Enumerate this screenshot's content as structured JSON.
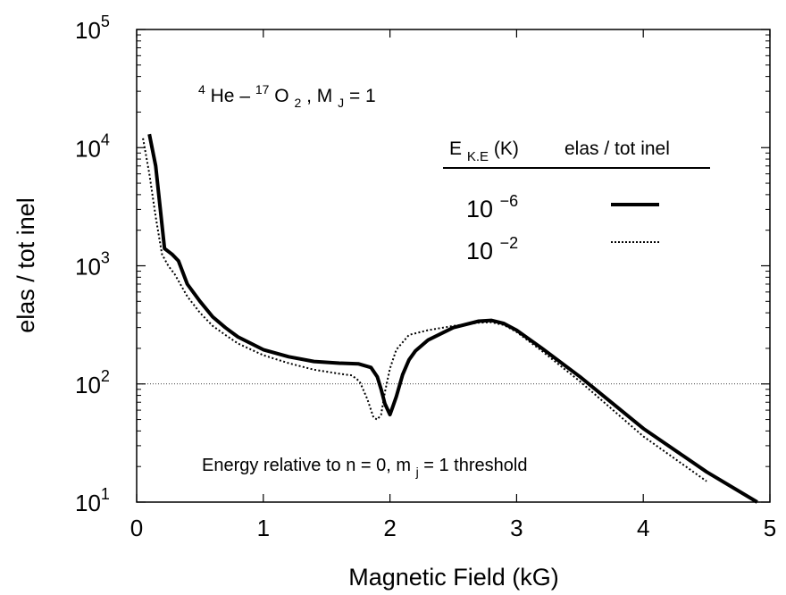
{
  "chart_data": {
    "type": "line",
    "xlabel": "Magnetic Field (kG)",
    "ylabel": "elas / tot inel",
    "x_scale": "linear",
    "y_scale": "log",
    "xlim": [
      0,
      5
    ],
    "ylim": [
      10,
      100000
    ],
    "x_ticks": [
      {
        "value": 0,
        "label": "0"
      },
      {
        "value": 1,
        "label": "1"
      },
      {
        "value": 2,
        "label": "2"
      },
      {
        "value": 3,
        "label": "3"
      },
      {
        "value": 4,
        "label": "4"
      },
      {
        "value": 5,
        "label": "5"
      }
    ],
    "y_ticks": [
      {
        "value": 10,
        "base": "10",
        "exp": "1"
      },
      {
        "value": 100,
        "base": "10",
        "exp": "2"
      },
      {
        "value": 1000,
        "base": "10",
        "exp": "3"
      },
      {
        "value": 10000,
        "base": "10",
        "exp": "4"
      },
      {
        "value": 100000,
        "base": "10",
        "exp": "5"
      }
    ],
    "reference_line": {
      "y": 100,
      "style": "dotted"
    },
    "annotations": {
      "system": {
        "sup1": "4",
        "he": "He –",
        "sup2": "17",
        "o": "O",
        "sub": "2",
        "mj": ", M",
        "mj_sub": "J",
        "eq": " = 1"
      },
      "energy_note": {
        "pre": "Energy relative to n = 0, m",
        "sub": "j",
        "post": " = 1 threshold"
      }
    },
    "legend": {
      "placement": "top-right",
      "header_energy": "E",
      "header_energy_sub": "K.E",
      "header_energy_post": "(K)",
      "header_ratio": "elas / tot inel",
      "entries": [
        {
          "base": "10",
          "exp": "−6",
          "style": "solid"
        },
        {
          "base": "10",
          "exp": "−2",
          "style": "dotted"
        }
      ]
    },
    "series": [
      {
        "style": "solid",
        "x": [
          0.1,
          0.15,
          0.22,
          0.28,
          0.33,
          0.4,
          0.5,
          0.6,
          0.7,
          0.8,
          1.0,
          1.2,
          1.4,
          1.6,
          1.75,
          1.85,
          1.9,
          1.93,
          1.96,
          2.0,
          2.02,
          2.05,
          2.1,
          2.15,
          2.2,
          2.3,
          2.5,
          2.7,
          2.8,
          2.9,
          3.0,
          3.2,
          3.5,
          4.0,
          4.5,
          4.9
        ],
        "y": [
          13000,
          7000,
          1400,
          1250,
          1100,
          700,
          500,
          370,
          300,
          250,
          195,
          170,
          155,
          150,
          148,
          138,
          115,
          90,
          68,
          55,
          63,
          78,
          120,
          160,
          190,
          235,
          300,
          340,
          345,
          325,
          285,
          200,
          115,
          42,
          18,
          10
        ]
      },
      {
        "style": "dotted",
        "x": [
          0.05,
          0.1,
          0.15,
          0.2,
          0.25,
          0.3,
          0.4,
          0.5,
          0.6,
          0.7,
          0.8,
          1.0,
          1.2,
          1.4,
          1.6,
          1.7,
          1.76,
          1.82,
          1.87,
          1.9,
          1.93,
          1.96,
          2.0,
          2.05,
          2.15,
          2.3,
          2.5,
          2.7,
          2.8,
          2.9,
          3.0,
          3.2,
          3.5,
          4.0,
          4.5
        ],
        "y": [
          12000,
          6000,
          2600,
          1250,
          1000,
          850,
          550,
          400,
          310,
          260,
          220,
          175,
          150,
          132,
          122,
          118,
          105,
          75,
          52,
          50,
          55,
          85,
          135,
          195,
          260,
          285,
          310,
          330,
          333,
          315,
          275,
          190,
          105,
          36,
          15
        ]
      }
    ]
  }
}
